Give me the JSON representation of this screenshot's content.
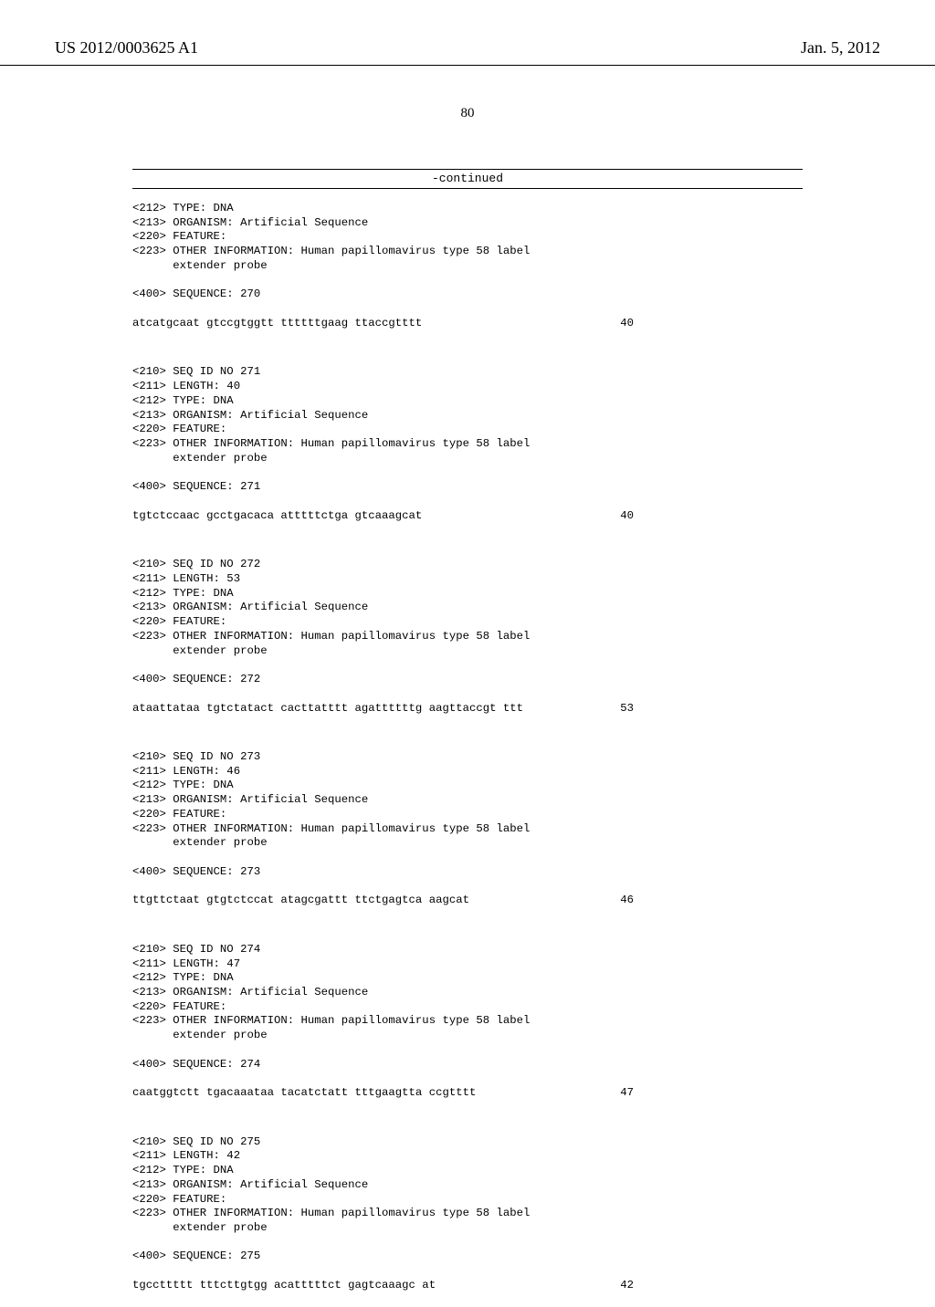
{
  "header": {
    "publication_id": "US 2012/0003625 A1",
    "publication_date": "Jan. 5, 2012"
  },
  "page_number": "80",
  "continued_label": "-continued",
  "blocks": [
    {
      "lines": [
        "<212> TYPE: DNA",
        "<213> ORGANISM: Artificial Sequence",
        "<220> FEATURE:",
        "<223> OTHER INFORMATION: Human papillomavirus type 58 label",
        "      extender probe",
        "",
        "<400> SEQUENCE: 270"
      ],
      "sequence": "atcatgcaat gtccgtggtt ttttttgaag ttaccgtttt",
      "length": "40"
    },
    {
      "lines": [
        "<210> SEQ ID NO 271",
        "<211> LENGTH: 40",
        "<212> TYPE: DNA",
        "<213> ORGANISM: Artificial Sequence",
        "<220> FEATURE:",
        "<223> OTHER INFORMATION: Human papillomavirus type 58 label",
        "      extender probe",
        "",
        "<400> SEQUENCE: 271"
      ],
      "sequence": "tgtctccaac gcctgacaca atttttctga gtcaaagcat",
      "length": "40"
    },
    {
      "lines": [
        "<210> SEQ ID NO 272",
        "<211> LENGTH: 53",
        "<212> TYPE: DNA",
        "<213> ORGANISM: Artificial Sequence",
        "<220> FEATURE:",
        "<223> OTHER INFORMATION: Human papillomavirus type 58 label",
        "      extender probe",
        "",
        "<400> SEQUENCE: 272"
      ],
      "sequence": "ataattataa tgtctatact cacttatttt agattttttg aagttaccgt ttt",
      "length": "53"
    },
    {
      "lines": [
        "<210> SEQ ID NO 273",
        "<211> LENGTH: 46",
        "<212> TYPE: DNA",
        "<213> ORGANISM: Artificial Sequence",
        "<220> FEATURE:",
        "<223> OTHER INFORMATION: Human papillomavirus type 58 label",
        "      extender probe",
        "",
        "<400> SEQUENCE: 273"
      ],
      "sequence": "ttgttctaat gtgtctccat atagcgattt ttctgagtca aagcat",
      "length": "46"
    },
    {
      "lines": [
        "<210> SEQ ID NO 274",
        "<211> LENGTH: 47",
        "<212> TYPE: DNA",
        "<213> ORGANISM: Artificial Sequence",
        "<220> FEATURE:",
        "<223> OTHER INFORMATION: Human papillomavirus type 58 label",
        "      extender probe",
        "",
        "<400> SEQUENCE: 274"
      ],
      "sequence": "caatggtctt tgacaaataa tacatctatt tttgaagtta ccgtttt",
      "length": "47"
    },
    {
      "lines": [
        "<210> SEQ ID NO 275",
        "<211> LENGTH: 42",
        "<212> TYPE: DNA",
        "<213> ORGANISM: Artificial Sequence",
        "<220> FEATURE:",
        "<223> OTHER INFORMATION: Human papillomavirus type 58 label",
        "      extender probe",
        "",
        "<400> SEQUENCE: 275"
      ],
      "sequence": "tgccttttt tttcttgtgg acatttttct gagtcaaagc at",
      "length": "42"
    }
  ]
}
